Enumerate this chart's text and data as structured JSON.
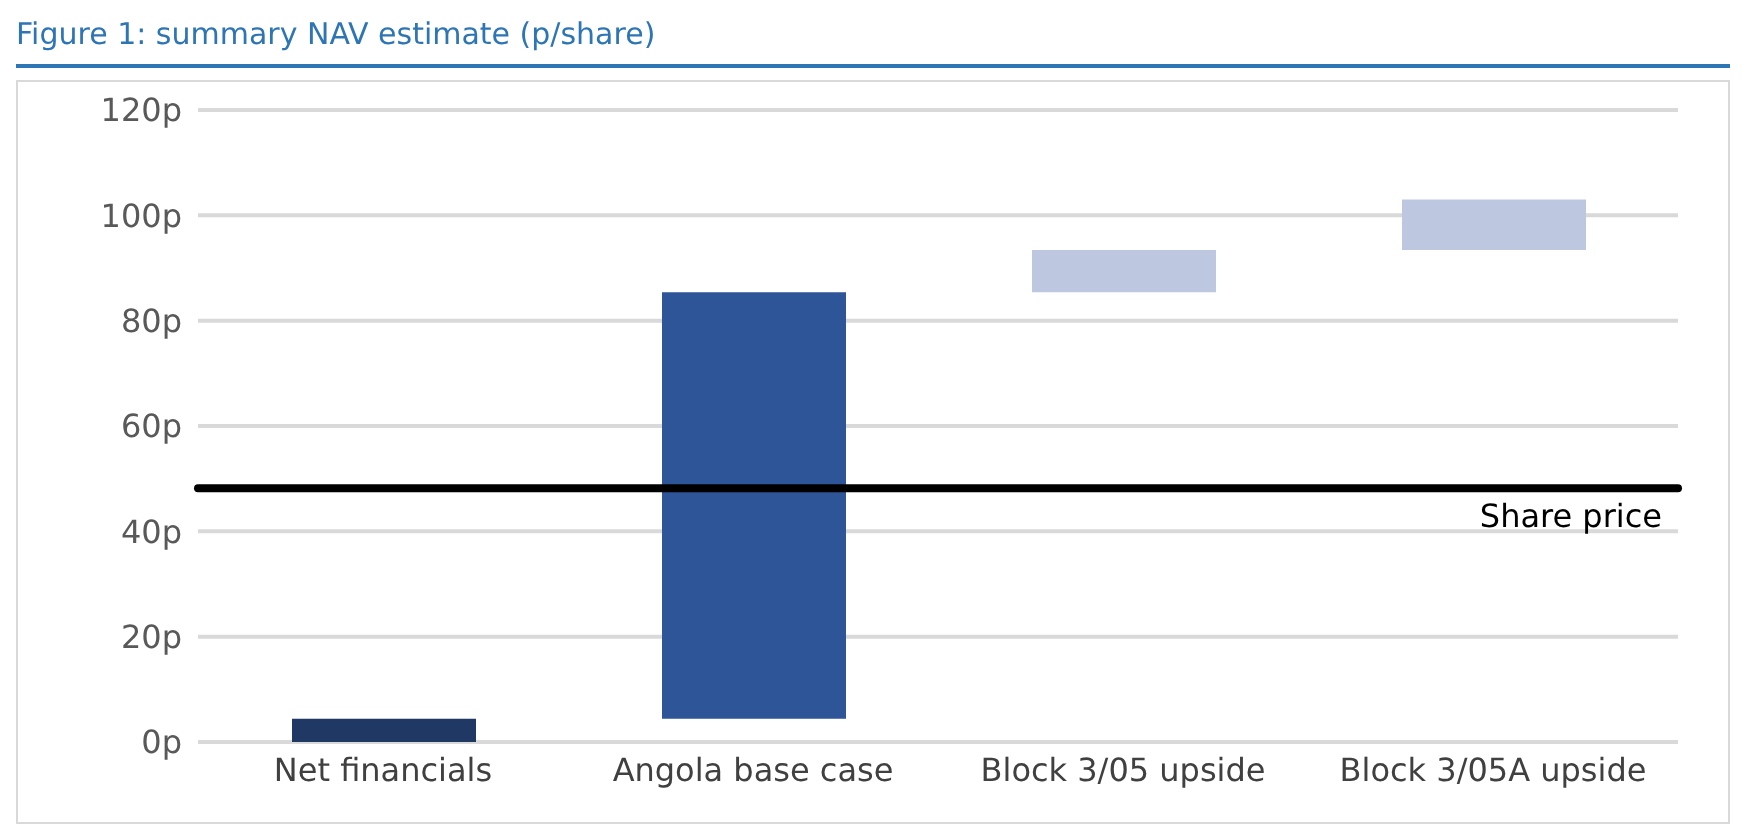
{
  "chart_data": {
    "type": "bar",
    "title": "Figure 1: summary NAV estimate (p/share)",
    "categories": [
      "Net financials",
      "Angola base case",
      "Block 3/05 upside",
      "Block 3/05A upside"
    ],
    "values": [
      4.4,
      81,
      8,
      9.6
    ],
    "base": [
      0,
      4.4,
      85.4,
      93.4
    ],
    "colors": [
      "#1f3864",
      "#2e5597",
      "#bdc7e0",
      "#bdc7e0"
    ],
    "ylim": [
      0,
      120
    ],
    "yticks": [
      {
        "value": 0,
        "label": "0p"
      },
      {
        "value": 20,
        "label": "20p"
      },
      {
        "value": 40,
        "label": "40p"
      },
      {
        "value": 60,
        "label": "60p"
      },
      {
        "value": 80,
        "label": "80p"
      },
      {
        "value": 100,
        "label": "100p"
      },
      {
        "value": 120,
        "label": "120p"
      }
    ],
    "grid": "y",
    "ref_lines": [
      {
        "axis": "y",
        "value": 48.2,
        "label": "Share price",
        "color": "#000000"
      }
    ]
  }
}
